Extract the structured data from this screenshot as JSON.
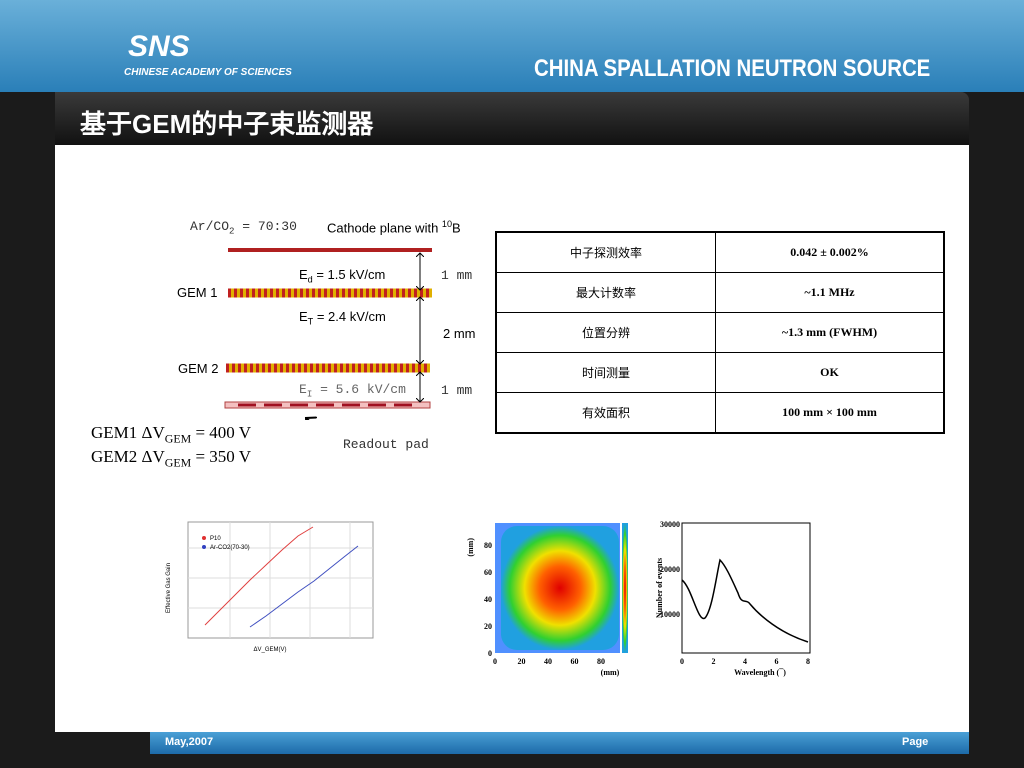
{
  "header": {
    "logo": "SNS",
    "logo_sub": "CHINESE ACADEMY OF SCIENCES",
    "org": "CHINA SPALLATION NEUTRON SOURCE",
    "title": "基于GEM的中子束监测器"
  },
  "diagram": {
    "gas": "Ar/CO",
    "gas_sub": "2",
    "gas_ratio": " = 70:30",
    "cathode": "Cathode plane with ",
    "cathode_sup": "10",
    "cathode_el": "B",
    "gem1": "GEM 1",
    "gem2": "GEM 2",
    "ed": "E",
    "ed_sub": "d",
    "ed_val": " = 1.5 kV/cm",
    "et1": "E",
    "et1_sub": "T",
    "et1_val": " = 2.4 kV/cm",
    "et2": "E",
    "et2_sub": "I",
    "et2_val": " = 5.6 kV/cm",
    "gap1": "1 mm",
    "gap2": "2 mm",
    "gap3": "1 mm",
    "readout": "Readout pad",
    "v1": "GEM1 ΔV",
    "v1_sub": "GEM",
    "v1_val": " = 400 V",
    "v2": "GEM2 ΔV",
    "v2_sub": "GEM",
    "v2_val": " = 350 V"
  },
  "table": {
    "rows": [
      [
        "中子探测效率",
        "0.042 ± 0.002%"
      ],
      [
        "最大计数率",
        "~1.1 MHz"
      ],
      [
        "位置分辨",
        "~1.3 mm (FWHM)"
      ],
      [
        "时间测量",
        "OK"
      ],
      [
        "有效面积",
        "100 mm × 100 mm"
      ]
    ]
  },
  "gain_plot": {
    "ylabel": "Effective Gas Gain",
    "xlabel": "ΔV_GEM(V)",
    "legend": [
      "P10",
      "Ar-CO2(70-30)"
    ]
  },
  "image_plot": {
    "ylabel": "(mm)",
    "xlabel": "(mm)",
    "xticks": [
      "0",
      "20",
      "40",
      "60",
      "80"
    ],
    "yticks": [
      "0",
      "20",
      "40",
      "60",
      "80"
    ]
  },
  "spectrum_plot": {
    "ylabel": "Number of events",
    "xlabel": "Wavelength (¯)",
    "xticks": [
      "0",
      "2",
      "4",
      "6",
      "8"
    ],
    "yticks": [
      "10000",
      "20000",
      "30000"
    ]
  },
  "footer": {
    "date": "May,2007",
    "page": "Page"
  }
}
